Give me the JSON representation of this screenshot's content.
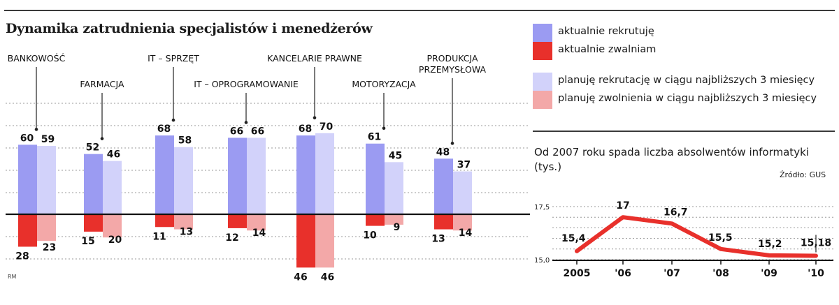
{
  "title": "Dynamika zatrudnienia specjalistów i menedżerów",
  "legend": [
    {
      "label": "aktualnie rekrutuję",
      "color": "#9b9bf2"
    },
    {
      "label": "aktualnie zwalniam",
      "color": "#e8302b"
    },
    {
      "label": "planuję rekrutację w ciągu najbliższych 3 miesięcy",
      "color": "#d2d2fa"
    },
    {
      "label": "planuję zwolnienia w ciągu najbliższych 3 miesięcy",
      "color": "#f3a8a8"
    }
  ],
  "note": "RM",
  "chart_data": [
    {
      "type": "bar",
      "categories": [
        "BANKOWOŚĆ",
        "FARMACJA",
        "IT – SPRZĘT",
        "IT – OPROGRAMOWANIE",
        "KANCELARIE PRAWNE",
        "MOTORYZACJA",
        "PRODUKCJA PRZEMYSŁOWA"
      ],
      "category_label_lines": [
        [
          "BANKOWOŚĆ"
        ],
        [
          "FARMACJA"
        ],
        [
          "IT – SPRZĘT"
        ],
        [
          "IT – OPROGRAMOWANIE"
        ],
        [
          "KANCELARIE PRAWNE"
        ],
        [
          "MOTORYZACJA"
        ],
        [
          "PRODUKCJA",
          "PRZEMYSŁOWA"
        ]
      ],
      "series": [
        {
          "name": "aktualnie rekrutuję",
          "values": [
            60,
            52,
            68,
            66,
            68,
            61,
            48
          ],
          "color": "#9b9bf2"
        },
        {
          "name": "planuję rekrutację w ciągu najbliższych 3 miesięcy",
          "values": [
            59,
            46,
            58,
            66,
            70,
            45,
            37
          ],
          "color": "#d2d2fa"
        },
        {
          "name": "aktualnie zwalniam",
          "values": [
            28,
            15,
            11,
            12,
            46,
            10,
            13
          ],
          "color": "#e8302b"
        },
        {
          "name": "planuję zwolnienia w ciągu najbliższych 3 miesięcy",
          "values": [
            23,
            20,
            13,
            14,
            46,
            9,
            14
          ],
          "color": "#f3a8a8"
        }
      ],
      "grid": true
    },
    {
      "type": "line",
      "title": "Od 2007 roku spada liczba absolwentów informatyki (tys.)",
      "source": "Źródło: GUS",
      "x": [
        "2005",
        "'06",
        "'07",
        "'08",
        "'09",
        "'10"
      ],
      "series": [
        {
          "values": [
            15.4,
            17,
            16.7,
            15.5,
            15.2,
            15.18
          ],
          "color": "#e8302b"
        }
      ],
      "value_labels": [
        "15,4",
        "17",
        "16,7",
        "15,5",
        "15,2",
        "15,18"
      ],
      "y_ticks": [
        "15,0",
        "17,5"
      ],
      "ylim": [
        15.0,
        17.5
      ],
      "grid": true
    }
  ]
}
